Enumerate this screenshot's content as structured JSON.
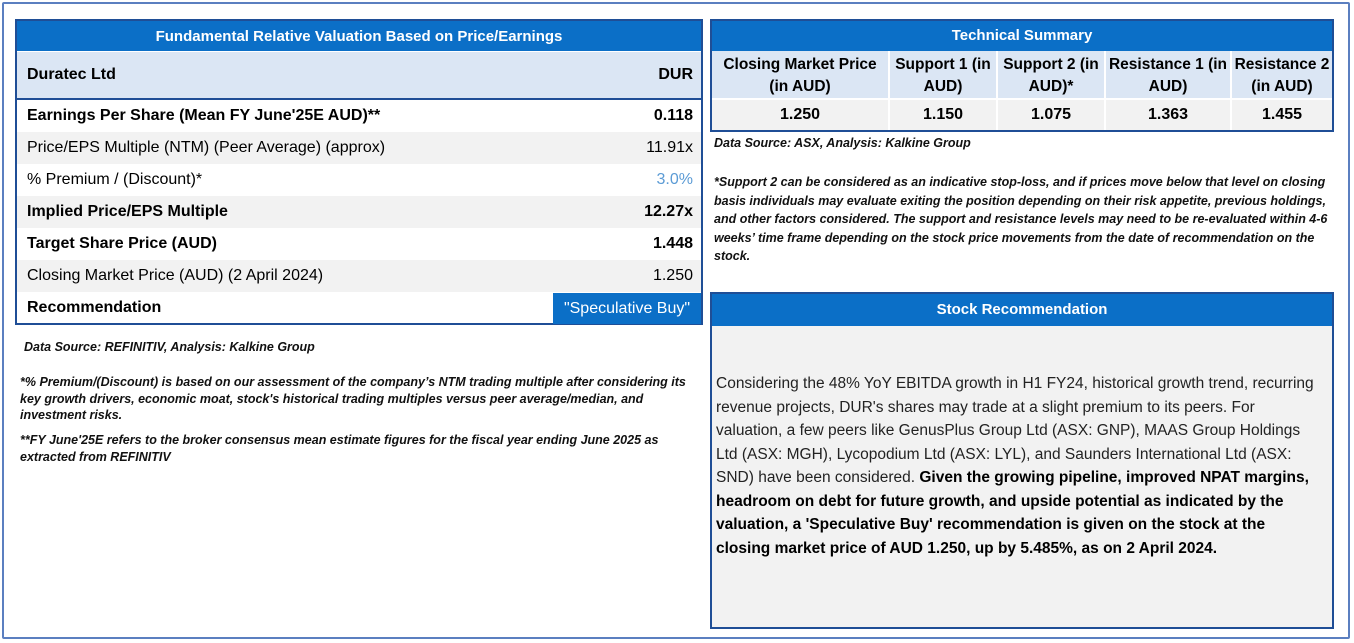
{
  "valuation": {
    "title": "Fundamental Relative Valuation Based on Price/Earnings",
    "company": "Duratec Ltd",
    "ticker": "DUR",
    "rows": [
      {
        "label": "Earnings Per Share (Mean FY June'25E AUD)**",
        "value": "0.118"
      },
      {
        "label": "Price/EPS Multiple (NTM) (Peer Average) (approx)",
        "value": "11.91x"
      },
      {
        "label": "% Premium / (Discount)*",
        "value": "3.0%"
      },
      {
        "label": "Implied Price/EPS Multiple",
        "value": "12.27x"
      },
      {
        "label": "Target Share Price (AUD)",
        "value": "1.448"
      },
      {
        "label": "Closing Market Price (AUD) (2 April 2024)",
        "value": "1.250"
      }
    ],
    "recommendation_label": "Recommendation",
    "recommendation_value": "\"Speculative Buy\"",
    "source": "Data Source: REFINITIV, Analysis: Kalkine Group",
    "footnote1": "*% Premium/(Discount) is based on our assessment of the company’s NTM trading multiple after considering its key growth drivers, economic moat, stock's historical trading multiples versus peer average/median, and investment risks.",
    "footnote2": "**FY June'25E refers to the broker consensus mean estimate figures for the fiscal year ending June 2025 as extracted from REFINITIV"
  },
  "technical": {
    "title": "Technical Summary",
    "columns": [
      {
        "header": "Closing Market Price (in AUD)",
        "value": "1.250"
      },
      {
        "header": "Support 1 (in AUD)",
        "value": "1.150"
      },
      {
        "header": "Support 2 (in AUD)*",
        "value": "1.075"
      },
      {
        "header": "Resistance 1 (in AUD)",
        "value": "1.363"
      },
      {
        "header": "Resistance 2 (in AUD)",
        "value": "1.455"
      }
    ],
    "source": "Data Source: ASX, Analysis: Kalkine Group",
    "note": "*Support 2 can be considered as an indicative stop-loss, and if prices move below that level on closing basis individuals may evaluate exiting the position depending on their risk appetite, previous holdings, and other factors considered. The support and resistance levels may need to be re-evaluated within 4-6 weeks’ time frame depending on the stock price movements from the date of recommendation on the stock."
  },
  "stock": {
    "title": "Stock Recommendation",
    "body_plain": "Considering the 48% YoY EBITDA growth in H1 FY24, historical growth trend, recurring revenue projects, DUR's shares may trade at a slight premium to its peers. For valuation, a few peers like GenusPlus Group Ltd (ASX: GNP), MAAS Group Holdings Ltd (ASX: MGH), Lycopodium Ltd (ASX: LYL), and Saunders International Ltd (ASX: SND) have been considered. ",
    "body_bold": "Given the growing pipeline, improved NPAT margins, headroom on debt for future growth, and upside potential as indicated by the valuation, a 'Speculative Buy' recommendation is given on the stock at the closing market price of AUD 1.250, up by 5.485%, as on 2 April 2024."
  }
}
